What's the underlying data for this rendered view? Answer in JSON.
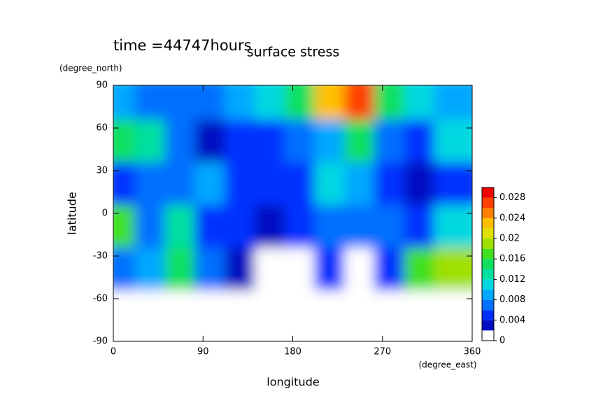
{
  "chart_data": {
    "type": "contour",
    "title": "surface stress",
    "subtitle": "time =44747hours",
    "x_label": "longitude",
    "x_unit": "(degree_east)",
    "y_label": "latitude",
    "y_unit": "(degree_north)",
    "xlim": [
      0,
      360
    ],
    "xticks": [
      0,
      90,
      180,
      270,
      360
    ],
    "ylim": [
      -90,
      90
    ],
    "yticks": [
      -90,
      -60,
      -30,
      0,
      30,
      60,
      90
    ],
    "x": [
      15,
      45,
      75,
      105,
      135,
      165,
      195,
      225,
      255,
      285,
      315,
      345
    ],
    "y": [
      75,
      45,
      15,
      -15,
      -45,
      -75
    ],
    "z": [
      [
        0.008,
        0.006,
        0.006,
        0.006,
        0.008,
        0.01,
        0.014,
        0.022,
        0.026,
        0.014,
        0.01,
        0.008
      ],
      [
        0.014,
        0.012,
        0.006,
        0.002,
        0.004,
        0.004,
        0.006,
        0.008,
        0.014,
        0.006,
        0.004,
        0.01
      ],
      [
        0.004,
        0.006,
        0.006,
        0.008,
        0.004,
        0.004,
        0.004,
        0.01,
        0.008,
        0.004,
        0.002,
        0.004
      ],
      [
        0.016,
        0.006,
        0.012,
        0.004,
        0.004,
        0.002,
        0.004,
        0.006,
        0.006,
        0.006,
        0.004,
        0.01
      ],
      [
        0.006,
        0.008,
        0.014,
        0.006,
        0.002,
        0.001,
        0.001,
        0.004,
        0.001,
        0.004,
        0.016,
        0.018
      ],
      [
        0.001,
        0.001,
        0.001,
        0.001,
        0.001,
        0.001,
        0.001,
        0.001,
        0.001,
        0.001,
        0.001,
        0.001
      ]
    ],
    "clim": [
      0,
      0.03
    ],
    "cticks": [
      0,
      0.004,
      0.008,
      0.012,
      0.016,
      0.02,
      0.024,
      0.028
    ],
    "colormap": [
      "#ffffff",
      "#0010c0",
      "#0030ff",
      "#0070ff",
      "#00a8ff",
      "#00d8e0",
      "#00e0a0",
      "#10e060",
      "#40e020",
      "#a0e000",
      "#e0e000",
      "#ffc000",
      "#ff8000",
      "#ff4000",
      "#f00000"
    ]
  }
}
